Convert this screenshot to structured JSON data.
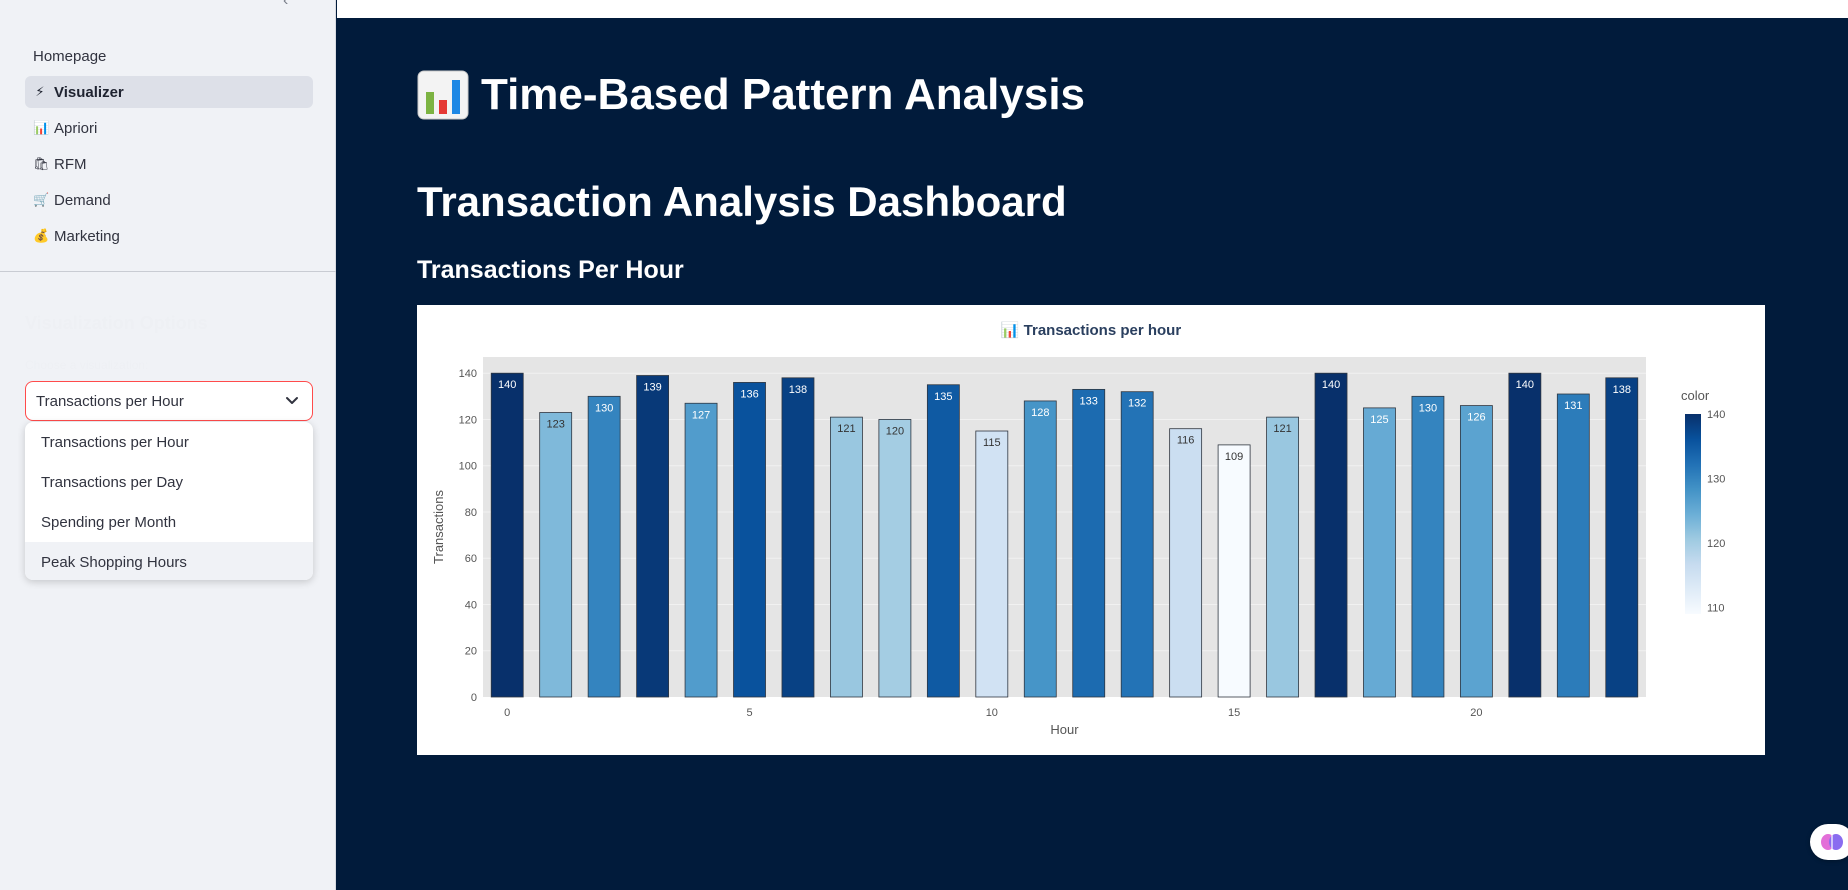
{
  "sidebar": {
    "nav": [
      {
        "label": "Homepage",
        "icon": "",
        "icon_name": "none"
      },
      {
        "label": "Visualizer",
        "icon": "⚡",
        "icon_name": "lightning-icon",
        "active": true
      },
      {
        "label": "Apriori",
        "icon": "📊",
        "icon_name": "bar-chart-icon"
      },
      {
        "label": "RFM",
        "icon": "🛍",
        "icon_name": "shopping-bags-icon"
      },
      {
        "label": "Demand",
        "icon": "🛒",
        "icon_name": "shopping-cart-icon"
      },
      {
        "label": "Marketing",
        "icon": "💰",
        "icon_name": "money-bag-icon"
      }
    ],
    "options_heading": "Visualization Options",
    "select_label": "Choose a visualization:",
    "select_value": "Transactions per Hour",
    "options": [
      "Transactions per Hour",
      "Transactions per Day",
      "Spending per Month",
      "Peak Shopping Hours"
    ],
    "hovered_option": "Peak Shopping Hours"
  },
  "main": {
    "title": "Time-Based Pattern Analysis",
    "dashboard_title": "Transaction Analysis Dashboard",
    "section_title": "Transactions Per Hour"
  },
  "colors": {
    "page_bg": "#011b3b",
    "sidebar_bg": "#f0f2f6",
    "accent_border": "#ff4b4b",
    "plot_bg": "#e5e5e5",
    "colorscale": [
      "#f7fbff",
      "#deebf7",
      "#c6dbef",
      "#9ecae1",
      "#6baed6",
      "#4292c6",
      "#2171b5",
      "#08519c",
      "#08306b"
    ]
  },
  "chart_data": {
    "type": "bar",
    "title": "📊 Transactions per hour",
    "xlabel": "Hour",
    "ylabel": "Transactions",
    "x": [
      0,
      1,
      2,
      3,
      4,
      5,
      6,
      7,
      8,
      9,
      10,
      11,
      12,
      13,
      14,
      15,
      16,
      17,
      18,
      19,
      20,
      21,
      22,
      23
    ],
    "values": [
      140,
      123,
      130,
      139,
      127,
      136,
      138,
      121,
      120,
      135,
      115,
      128,
      133,
      132,
      116,
      109,
      121,
      140,
      125,
      130,
      126,
      140,
      131,
      138
    ],
    "ylim": [
      0,
      147
    ],
    "yticks": [
      0,
      20,
      40,
      60,
      80,
      100,
      120,
      140
    ],
    "xticks": [
      0,
      5,
      10,
      15,
      20
    ],
    "xlim": [
      -0.5,
      23.5
    ],
    "grid": true,
    "colorbar": {
      "title": "color",
      "ticks": [
        110,
        120,
        130,
        140
      ],
      "min": 109,
      "max": 140
    }
  }
}
